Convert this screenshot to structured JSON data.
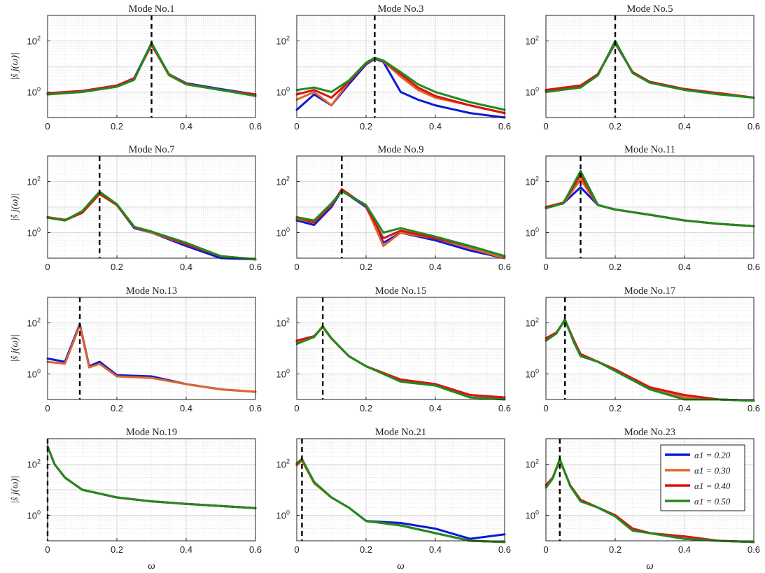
{
  "figure": {
    "x_tick_labels": [
      "0",
      "0.2",
      "0.4",
      "0.6"
    ],
    "y_tick_base": "10",
    "y_tick_exps": [
      "0",
      "2"
    ],
    "ylabel": "|ŝ j(ω)|",
    "xlabel": "ω",
    "legend": [
      "α1 = 0.20",
      "α1 = 0.30",
      "α1 = 0.40",
      "α1 = 0.50"
    ],
    "colors": [
      "#0a1ad6",
      "#e0662a",
      "#e01010",
      "#1e8c1e"
    ]
  },
  "chart_data": [
    {
      "type": "line",
      "title": "Mode No.1",
      "xlim": [
        0,
        0.6
      ],
      "ylim": [
        0.1,
        1000
      ],
      "yscale": "log",
      "peak": 0.3,
      "x": [
        0,
        0.1,
        0.2,
        0.25,
        0.3,
        0.35,
        0.4,
        0.5,
        0.6
      ],
      "series": [
        {
          "name": "α1 = 0.20",
          "values": [
            0.9,
            1.1,
            1.8,
            3.5,
            80,
            5,
            2.2,
            1.3,
            0.8
          ]
        },
        {
          "name": "α1 = 0.30",
          "values": [
            0.9,
            1.0,
            1.7,
            3.2,
            75,
            4.5,
            2.0,
            1.2,
            0.8
          ]
        },
        {
          "name": "α1 = 0.40",
          "values": [
            0.9,
            1.1,
            1.8,
            3.4,
            70,
            5,
            2.1,
            1.2,
            0.8
          ]
        },
        {
          "name": "α1 = 0.50",
          "values": [
            0.8,
            1.0,
            1.6,
            3.0,
            85,
            4.8,
            2.0,
            1.2,
            0.7
          ]
        }
      ]
    },
    {
      "type": "line",
      "title": "Mode No.3",
      "xlim": [
        0,
        0.6
      ],
      "ylim": [
        0.1,
        1000
      ],
      "yscale": "log",
      "peak": 0.225,
      "x": [
        0,
        0.05,
        0.1,
        0.15,
        0.2,
        0.225,
        0.25,
        0.3,
        0.35,
        0.4,
        0.5,
        0.6
      ],
      "series": [
        {
          "name": "α1 = 0.20",
          "values": [
            0.2,
            0.8,
            0.3,
            2,
            12,
            20,
            15,
            1,
            0.5,
            0.3,
            0.15,
            0.1
          ]
        },
        {
          "name": "α1 = 0.30",
          "values": [
            0.5,
            1,
            0.3,
            2.5,
            13,
            21,
            16,
            4,
            1.2,
            0.6,
            0.3,
            0.15
          ]
        },
        {
          "name": "α1 = 0.40",
          "values": [
            0.8,
            1.2,
            0.6,
            2.5,
            13,
            21,
            17,
            5,
            1.5,
            0.7,
            0.3,
            0.15
          ]
        },
        {
          "name": "α1 = 0.50",
          "values": [
            1.2,
            1.5,
            1,
            2.8,
            14,
            22,
            17,
            6,
            2,
            1,
            0.4,
            0.2
          ]
        }
      ]
    },
    {
      "type": "line",
      "title": "Mode No.5",
      "xlim": [
        0,
        0.6
      ],
      "ylim": [
        0.1,
        1000
      ],
      "yscale": "log",
      "peak": 0.2,
      "x": [
        0,
        0.1,
        0.15,
        0.2,
        0.25,
        0.3,
        0.4,
        0.5,
        0.6
      ],
      "series": [
        {
          "name": "α1 = 0.20",
          "values": [
            1.2,
            1.8,
            5,
            80,
            6,
            2.5,
            1.3,
            0.9,
            0.6
          ]
        },
        {
          "name": "α1 = 0.30",
          "values": [
            1.1,
            1.6,
            5,
            85,
            6,
            2.4,
            1.3,
            0.9,
            0.6
          ]
        },
        {
          "name": "α1 = 0.40",
          "values": [
            1.2,
            1.8,
            5,
            90,
            6,
            2.5,
            1.3,
            0.9,
            0.6
          ]
        },
        {
          "name": "α1 = 0.50",
          "values": [
            1.0,
            1.5,
            4.5,
            100,
            5.5,
            2.3,
            1.2,
            0.8,
            0.6
          ]
        }
      ]
    },
    {
      "type": "line",
      "title": "Mode No.7",
      "xlim": [
        0,
        0.6
      ],
      "ylim": [
        0.1,
        1000
      ],
      "yscale": "log",
      "peak": 0.15,
      "x": [
        0,
        0.05,
        0.1,
        0.15,
        0.2,
        0.25,
        0.3,
        0.4,
        0.5,
        0.6
      ],
      "series": [
        {
          "name": "α1 = 0.20",
          "values": [
            4,
            3,
            6,
            35,
            12,
            1.5,
            1,
            0.3,
            0.1,
            0.08
          ]
        },
        {
          "name": "α1 = 0.30",
          "values": [
            4,
            3,
            6,
            32,
            12,
            1.6,
            1,
            0.35,
            0.12,
            0.08
          ]
        },
        {
          "name": "α1 = 0.40",
          "values": [
            4,
            3.2,
            6,
            34,
            12,
            1.6,
            1.1,
            0.35,
            0.12,
            0.08
          ]
        },
        {
          "name": "α1 = 0.50",
          "values": [
            3.8,
            3,
            7,
            40,
            13,
            1.7,
            1.1,
            0.4,
            0.12,
            0.08
          ]
        }
      ]
    },
    {
      "type": "line",
      "title": "Mode No.9",
      "xlim": [
        0,
        0.6
      ],
      "ylim": [
        0.1,
        1000
      ],
      "yscale": "log",
      "peak": 0.13,
      "x": [
        0,
        0.05,
        0.1,
        0.13,
        0.2,
        0.25,
        0.3,
        0.4,
        0.5,
        0.6
      ],
      "series": [
        {
          "name": "α1 = 0.20",
          "values": [
            3,
            2,
            10,
            45,
            10,
            0.4,
            1,
            0.5,
            0.2,
            0.1
          ]
        },
        {
          "name": "α1 = 0.30",
          "values": [
            3.5,
            2.5,
            12,
            48,
            11,
            0.3,
            1,
            0.6,
            0.25,
            0.1
          ]
        },
        {
          "name": "α1 = 0.40",
          "values": [
            4,
            2.5,
            12,
            50,
            11,
            0.6,
            1.2,
            0.6,
            0.3,
            0.12
          ]
        },
        {
          "name": "α1 = 0.50",
          "values": [
            4,
            3,
            14,
            42,
            12,
            1,
            1.5,
            0.7,
            0.3,
            0.12
          ]
        }
      ]
    },
    {
      "type": "line",
      "title": "Mode No.11",
      "xlim": [
        0,
        0.6
      ],
      "ylim": [
        0.1,
        1000
      ],
      "yscale": "log",
      "peak": 0.1,
      "x": [
        0,
        0.05,
        0.1,
        0.15,
        0.2,
        0.3,
        0.4,
        0.5,
        0.6
      ],
      "series": [
        {
          "name": "α1 = 0.20",
          "values": [
            10,
            14,
            60,
            12,
            8,
            5,
            3,
            2.2,
            1.8
          ]
        },
        {
          "name": "α1 = 0.30",
          "values": [
            10,
            14,
            120,
            12,
            8,
            5,
            3,
            2.2,
            1.8
          ]
        },
        {
          "name": "α1 = 0.40",
          "values": [
            10,
            15,
            180,
            12,
            8,
            5,
            3,
            2.2,
            1.8
          ]
        },
        {
          "name": "α1 = 0.50",
          "values": [
            9,
            14,
            260,
            12,
            8,
            5,
            3,
            2.2,
            1.8
          ]
        }
      ]
    },
    {
      "type": "line",
      "title": "Mode No.13",
      "xlim": [
        0,
        0.6
      ],
      "ylim": [
        0.1,
        1000
      ],
      "yscale": "log",
      "peak": 0.093,
      "x": [
        0,
        0.05,
        0.093,
        0.12,
        0.15,
        0.2,
        0.3,
        0.4,
        0.5,
        0.6
      ],
      "series": [
        {
          "name": "α1 = 0.20",
          "values": [
            4,
            3,
            90,
            2,
            3,
            0.9,
            0.8,
            0.4,
            0.25,
            0.2
          ]
        },
        {
          "name": "α1 = 0.30",
          "values": [
            3,
            2.5,
            80,
            1.8,
            2.5,
            0.8,
            0.7,
            0.4,
            0.25,
            0.2
          ]
        }
      ]
    },
    {
      "type": "line",
      "title": "Mode No.15",
      "xlim": [
        0,
        0.6
      ],
      "ylim": [
        0.1,
        1000
      ],
      "yscale": "log",
      "peak": 0.075,
      "x": [
        0,
        0.05,
        0.075,
        0.1,
        0.15,
        0.2,
        0.3,
        0.4,
        0.5,
        0.6
      ],
      "series": [
        {
          "name": "α1 = 0.20",
          "values": [
            20,
            30,
            70,
            25,
            5,
            2,
            0.6,
            0.4,
            0.15,
            0.12
          ]
        },
        {
          "name": "α1 = 0.30",
          "values": [
            18,
            28,
            68,
            24,
            5,
            2,
            0.6,
            0.4,
            0.15,
            0.12
          ]
        },
        {
          "name": "α1 = 0.40",
          "values": [
            20,
            30,
            72,
            25,
            5,
            2,
            0.6,
            0.4,
            0.15,
            0.12
          ]
        },
        {
          "name": "α1 = 0.50",
          "values": [
            15,
            28,
            75,
            25,
            5,
            2,
            0.5,
            0.35,
            0.12,
            0.1
          ]
        }
      ]
    },
    {
      "type": "line",
      "title": "Mode No.17",
      "xlim": [
        0,
        0.6
      ],
      "ylim": [
        0.1,
        1000
      ],
      "yscale": "log",
      "peak": 0.055,
      "x": [
        0,
        0.03,
        0.055,
        0.08,
        0.1,
        0.15,
        0.2,
        0.3,
        0.4,
        0.5,
        0.6
      ],
      "series": [
        {
          "name": "α1 = 0.20",
          "values": [
            25,
            40,
            130,
            20,
            5,
            3,
            1.5,
            0.3,
            0.12,
            0.1,
            0.08
          ]
        },
        {
          "name": "α1 = 0.30",
          "values": [
            25,
            40,
            125,
            20,
            6,
            3,
            1.5,
            0.3,
            0.12,
            0.1,
            0.08
          ]
        },
        {
          "name": "α1 = 0.40",
          "values": [
            25,
            42,
            130,
            22,
            6,
            3,
            1.5,
            0.3,
            0.15,
            0.1,
            0.08
          ]
        },
        {
          "name": "α1 = 0.50",
          "values": [
            20,
            38,
            140,
            18,
            5,
            3,
            1.3,
            0.25,
            0.1,
            0.1,
            0.08
          ]
        }
      ]
    },
    {
      "type": "line",
      "title": "Mode No.19",
      "xlim": [
        0,
        0.6
      ],
      "ylim": [
        0.1,
        1000
      ],
      "yscale": "log",
      "peak": 0.0,
      "x": [
        0,
        0.02,
        0.05,
        0.1,
        0.2,
        0.3,
        0.4,
        0.5,
        0.6
      ],
      "series": [
        {
          "name": "α1 = 0.20",
          "values": [
            500,
            100,
            30,
            10,
            5,
            3.5,
            2.8,
            2.3,
            1.9
          ]
        },
        {
          "name": "α1 = 0.30",
          "values": [
            500,
            100,
            30,
            10,
            5,
            3.5,
            2.8,
            2.3,
            1.9
          ]
        },
        {
          "name": "α1 = 0.40",
          "values": [
            500,
            100,
            30,
            10,
            5,
            3.5,
            2.8,
            2.3,
            1.9
          ]
        },
        {
          "name": "α1 = 0.50",
          "values": [
            500,
            100,
            30,
            10,
            5,
            3.5,
            2.8,
            2.3,
            1.9
          ]
        }
      ]
    },
    {
      "type": "line",
      "title": "Mode No.21",
      "xlim": [
        0,
        0.6
      ],
      "ylim": [
        0.1,
        1000
      ],
      "yscale": "log",
      "peak": 0.015,
      "x": [
        0,
        0.015,
        0.05,
        0.1,
        0.15,
        0.2,
        0.3,
        0.4,
        0.5,
        0.6
      ],
      "series": [
        {
          "name": "α1 = 0.20",
          "values": [
            100,
            150,
            20,
            5,
            2,
            0.6,
            0.5,
            0.3,
            0.12,
            0.18
          ]
        },
        {
          "name": "α1 = 0.30",
          "values": [
            90,
            140,
            18,
            5,
            2,
            0.6,
            0.4,
            0.2,
            0.1,
            0.08
          ]
        },
        {
          "name": "α1 = 0.40",
          "values": [
            100,
            150,
            20,
            5,
            2,
            0.6,
            0.4,
            0.2,
            0.1,
            0.08
          ]
        },
        {
          "name": "α1 = 0.50",
          "values": [
            110,
            160,
            20,
            5,
            2,
            0.6,
            0.4,
            0.2,
            0.1,
            0.08
          ]
        }
      ]
    },
    {
      "type": "line",
      "title": "Mode No.23",
      "xlim": [
        0,
        0.6
      ],
      "ylim": [
        0.1,
        1000
      ],
      "yscale": "log",
      "peak": 0.04,
      "x": [
        0,
        0.02,
        0.04,
        0.07,
        0.1,
        0.15,
        0.2,
        0.25,
        0.3,
        0.4,
        0.5,
        0.6
      ],
      "series": [
        {
          "name": "α1 = 0.20",
          "values": [
            15,
            30,
            150,
            15,
            4,
            2,
            1,
            0.3,
            0.2,
            0.12,
            0.1,
            0.08
          ]
        },
        {
          "name": "α1 = 0.30",
          "values": [
            15,
            30,
            140,
            15,
            4,
            2,
            1,
            0.3,
            0.2,
            0.12,
            0.1,
            0.08
          ]
        },
        {
          "name": "α1 = 0.40",
          "values": [
            15,
            30,
            150,
            15,
            4,
            2,
            1,
            0.3,
            0.2,
            0.15,
            0.1,
            0.08
          ]
        },
        {
          "name": "α1 = 0.50",
          "values": [
            12,
            28,
            160,
            14,
            3.5,
            2,
            0.9,
            0.25,
            0.2,
            0.12,
            0.1,
            0.08
          ]
        }
      ]
    }
  ]
}
